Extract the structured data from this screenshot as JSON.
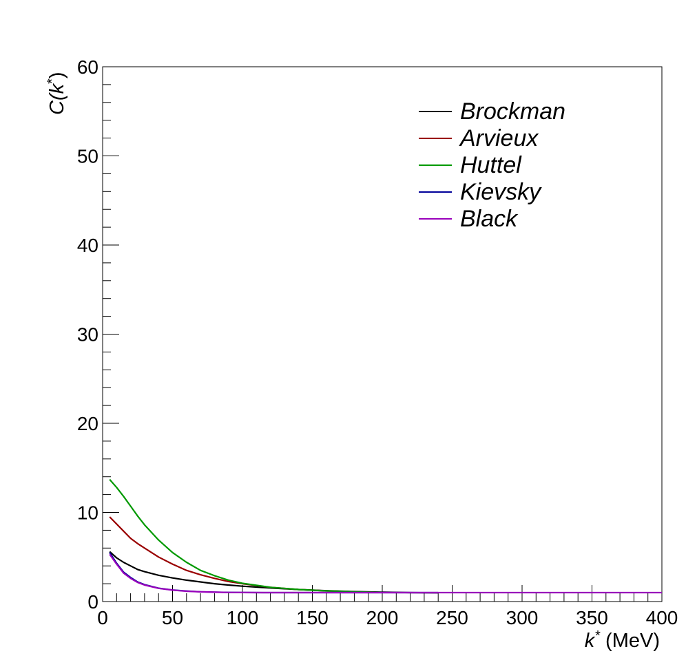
{
  "chart_data": {
    "type": "line",
    "title": "",
    "xlabel": {
      "main": "k",
      "sup": "*",
      "unit": " (MeV)"
    },
    "ylabel": {
      "main": "C(k",
      "sup": "*",
      "close": ")"
    },
    "xlim": [
      0,
      400
    ],
    "ylim": [
      0,
      60
    ],
    "xticks": [
      0,
      50,
      100,
      150,
      200,
      250,
      300,
      350,
      400
    ],
    "yticks": [
      0,
      10,
      20,
      30,
      40,
      50,
      60
    ],
    "grid": false,
    "legend_position": "top-right",
    "series": [
      {
        "name": "Brockman",
        "color": "#000000",
        "x": [
          5,
          10,
          15,
          20,
          25,
          30,
          40,
          50,
          60,
          70,
          80,
          90,
          100,
          120,
          140,
          160,
          180,
          200,
          220,
          240
        ],
        "y": [
          5.6,
          4.9,
          4.4,
          4.0,
          3.6,
          3.35,
          2.95,
          2.65,
          2.4,
          2.2,
          2.0,
          1.85,
          1.72,
          1.52,
          1.35,
          1.22,
          1.12,
          1.05,
          1.0,
          0.98
        ]
      },
      {
        "name": "Arvieux",
        "color": "#990000",
        "x": [
          5,
          10,
          15,
          20,
          25,
          30,
          40,
          50,
          60,
          70,
          80,
          90,
          100,
          120,
          140,
          160,
          180,
          200
        ],
        "y": [
          9.5,
          8.7,
          7.9,
          7.1,
          6.5,
          6.0,
          5.0,
          4.2,
          3.5,
          3.0,
          2.6,
          2.25,
          2.0,
          1.6,
          1.35,
          1.2,
          1.1,
          1.03
        ]
      },
      {
        "name": "Huttel",
        "color": "#009900",
        "x": [
          5,
          10,
          15,
          20,
          25,
          30,
          40,
          50,
          60,
          70,
          80,
          90,
          100,
          120,
          140,
          160,
          180,
          200
        ],
        "y": [
          13.7,
          12.8,
          11.8,
          10.7,
          9.6,
          8.6,
          6.9,
          5.5,
          4.4,
          3.5,
          2.9,
          2.4,
          2.05,
          1.6,
          1.35,
          1.2,
          1.1,
          1.03
        ]
      },
      {
        "name": "Kievsky",
        "color": "#000099",
        "x": [
          5,
          10,
          15,
          20,
          25,
          30,
          40,
          50,
          60,
          70,
          80,
          90,
          100,
          120,
          140,
          160,
          180,
          200,
          220,
          240
        ],
        "y": [
          5.5,
          4.3,
          3.3,
          2.7,
          2.2,
          1.9,
          1.5,
          1.3,
          1.18,
          1.1,
          1.06,
          1.03,
          1.01,
          1.0,
          1.0,
          1.0,
          1.0,
          1.0,
          1.0,
          1.0
        ]
      },
      {
        "name": "Black",
        "color": "#9900bb",
        "x": [
          5,
          10,
          15,
          20,
          25,
          30,
          40,
          50,
          60,
          70,
          80,
          90,
          100,
          120,
          140,
          160,
          180,
          200,
          220,
          240,
          260,
          280,
          300,
          320,
          340,
          360,
          380,
          400
        ],
        "y": [
          5.3,
          4.2,
          3.2,
          2.6,
          2.15,
          1.85,
          1.48,
          1.28,
          1.16,
          1.09,
          1.05,
          1.02,
          1.01,
          1.0,
          1.0,
          1.0,
          1.0,
          1.0,
          1.0,
          1.0,
          1.0,
          1.0,
          1.0,
          1.0,
          1.0,
          1.0,
          1.0,
          1.0
        ]
      }
    ]
  }
}
